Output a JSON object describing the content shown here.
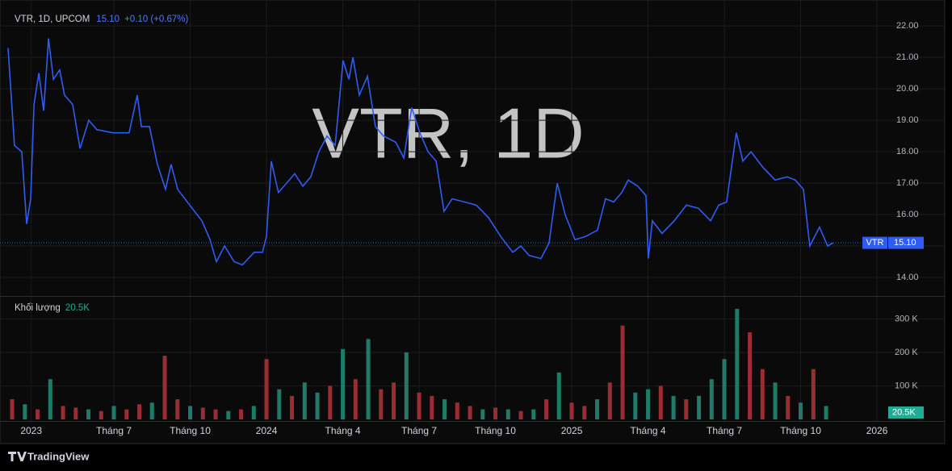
{
  "chart_data": [
    {
      "type": "line",
      "title": "VTR, 1D",
      "subtitle": "VTR, 1D, UPCOM",
      "change": "+0.10 (+0.67%)",
      "x": [
        1.84,
        2.09,
        2.38,
        2.57,
        2.73,
        2.86,
        3.05,
        3.24,
        3.43,
        3.62,
        3.87,
        4.06,
        4.38,
        4.67,
        5.01,
        5.33,
        5.97,
        6.6,
        6.92,
        7.08,
        7.4,
        7.71,
        8.03,
        8.25,
        8.51,
        8.98,
        9.46,
        9.78,
        10.03,
        10.35,
        10.73,
        11.05,
        11.52,
        11.84,
        12.0,
        12.19,
        12.47,
        12.79,
        13.11,
        13.43,
        13.74,
        14.06,
        14.38,
        14.7,
        15.01,
        15.24,
        15.4,
        15.65,
        15.97,
        16.28,
        16.6,
        17.08,
        17.4,
        17.71,
        18.03,
        18.35,
        18.67,
        18.98,
        19.3,
        19.78,
        20.25,
        20.73,
        21.21,
        21.68,
        22.0,
        22.32,
        22.79,
        23.11,
        23.43,
        23.74,
        24.13,
        24.54,
        25.01,
        25.33,
        25.65,
        25.97,
        26.22,
        26.6,
        26.92,
        27.01,
        27.17,
        27.55,
        28.03,
        28.51,
        28.98,
        29.46,
        29.78,
        30.09,
        30.47,
        30.73,
        31.05,
        31.52,
        32.0,
        32.47,
        32.79,
        33.11,
        33.36,
        33.74,
        34.06,
        34.28
      ],
      "series": [
        {
          "name": "VTR",
          "color": "#2f5cf5",
          "values": [
            21.3,
            18.2,
            18.0,
            15.7,
            16.5,
            19.5,
            20.5,
            19.3,
            21.6,
            20.3,
            20.6,
            19.8,
            19.5,
            18.1,
            19.0,
            18.7,
            18.6,
            18.6,
            19.8,
            18.8,
            18.8,
            17.6,
            16.8,
            17.6,
            16.8,
            16.3,
            15.8,
            15.2,
            14.5,
            15.0,
            14.5,
            14.4,
            14.8,
            14.8,
            15.3,
            17.7,
            16.7,
            17.0,
            17.3,
            16.9,
            17.2,
            18.0,
            18.5,
            18.2,
            20.9,
            20.3,
            21.0,
            19.8,
            20.4,
            18.8,
            18.5,
            18.3,
            17.8,
            19.4,
            18.6,
            18.0,
            17.7,
            16.1,
            16.5,
            16.4,
            16.3,
            15.9,
            15.3,
            14.8,
            15.0,
            14.7,
            14.6,
            15.1,
            17.0,
            16.0,
            15.2,
            15.3,
            15.5,
            16.5,
            16.4,
            16.7,
            17.1,
            16.9,
            16.6,
            14.6,
            15.8,
            15.4,
            15.8,
            16.3,
            16.2,
            15.8,
            16.3,
            16.4,
            18.6,
            17.7,
            18.0,
            17.5,
            17.1,
            17.2,
            17.1,
            16.8,
            15.0,
            15.6,
            15.0,
            15.1
          ]
        }
      ],
      "last_price": {
        "value": 15.1,
        "label": "15.10"
      },
      "xlim": [
        1.84,
        36.3
      ],
      "xticks": [
        {
          "value": 2.75,
          "label": "2023"
        },
        {
          "value": 6,
          "label": "Tháng 7"
        },
        {
          "value": 9,
          "label": "Tháng 10"
        },
        {
          "value": 12,
          "label": "2024"
        },
        {
          "value": 15,
          "label": "Tháng 4"
        },
        {
          "value": 18,
          "label": "Tháng 7"
        },
        {
          "value": 21,
          "label": "Tháng 10"
        },
        {
          "value": 24,
          "label": "2025"
        },
        {
          "value": 27,
          "label": "Tháng 4"
        },
        {
          "value": 30,
          "label": "Tháng 7"
        },
        {
          "value": 33,
          "label": "Tháng 10"
        },
        {
          "value": 36,
          "label": "2026"
        }
      ],
      "ylim": [
        13.41,
        22.26
      ],
      "yticks": [
        {
          "value": 14,
          "label": "14.00"
        },
        {
          "value": 15,
          "label": "15.00"
        },
        {
          "value": 16,
          "label": "16.00"
        },
        {
          "value": 17,
          "label": "17.00"
        },
        {
          "value": 18,
          "label": "18.00"
        },
        {
          "value": 19,
          "label": "19.00"
        },
        {
          "value": 20,
          "label": "20.00"
        },
        {
          "value": 21,
          "label": "21.00"
        },
        {
          "value": 22,
          "label": "22.00"
        }
      ],
      "grid": true
    },
    {
      "type": "bar",
      "title": "Khối lượng",
      "x": [
        2.0,
        2.5,
        3.0,
        3.5,
        4.0,
        4.5,
        5.0,
        5.5,
        6.0,
        6.5,
        7.0,
        7.5,
        8.0,
        8.5,
        9.0,
        9.5,
        10.0,
        10.5,
        11.0,
        11.5,
        12.0,
        12.5,
        13.0,
        13.5,
        14.0,
        14.5,
        15.0,
        15.5,
        16.0,
        16.5,
        17.0,
        17.5,
        18.0,
        18.5,
        19.0,
        19.5,
        20.0,
        20.5,
        21.0,
        21.5,
        22.0,
        22.5,
        23.0,
        23.5,
        24.0,
        24.5,
        25.0,
        25.5,
        26.0,
        26.5,
        27.0,
        27.5,
        28.0,
        28.5,
        29.0,
        29.5,
        30.0,
        30.5,
        31.0,
        31.5,
        32.0,
        32.5,
        33.0,
        33.5,
        34.0
      ],
      "values": [
        60000,
        45000,
        30000,
        120000,
        40000,
        35000,
        30000,
        25000,
        40000,
        30000,
        45000,
        50000,
        190000,
        60000,
        40000,
        35000,
        30000,
        25000,
        30000,
        40000,
        180000,
        90000,
        70000,
        110000,
        80000,
        100000,
        210000,
        120000,
        240000,
        90000,
        110000,
        200000,
        80000,
        70000,
        60000,
        50000,
        40000,
        30000,
        35000,
        30000,
        25000,
        30000,
        60000,
        140000,
        50000,
        40000,
        60000,
        110000,
        280000,
        80000,
        90000,
        100000,
        70000,
        60000,
        70000,
        120000,
        180000,
        330000,
        260000,
        150000,
        110000,
        70000,
        50000,
        150000,
        40000
      ],
      "colors": [
        "#9b2c33",
        "#1f7a68",
        "#9b2c33",
        "#1f7a68",
        "#9b2c33",
        "#9b2c33",
        "#1f7a68",
        "#9b2c33",
        "#1f7a68",
        "#9b2c33",
        "#9b2c33",
        "#1f7a68",
        "#9b2c33",
        "#9b2c33",
        "#1f7a68",
        "#9b2c33",
        "#9b2c33",
        "#1f7a68",
        "#9b2c33",
        "#1f7a68",
        "#9b2c33",
        "#1f7a68",
        "#9b2c33",
        "#1f7a68",
        "#1f7a68",
        "#9b2c33",
        "#1f7a68",
        "#9b2c33",
        "#1f7a68",
        "#9b2c33",
        "#9b2c33",
        "#1f7a68",
        "#9b2c33",
        "#9b2c33",
        "#1f7a68",
        "#9b2c33",
        "#9b2c33",
        "#1f7a68",
        "#9b2c33",
        "#1f7a68",
        "#9b2c33",
        "#1f7a68",
        "#9b2c33",
        "#1f7a68",
        "#9b2c33",
        "#9b2c33",
        "#1f7a68",
        "#9b2c33",
        "#9b2c33",
        "#1f7a68",
        "#1f7a68",
        "#9b2c33",
        "#1f7a68",
        "#9b2c33",
        "#1f7a68",
        "#1f7a68",
        "#1f7a68",
        "#1f7a68",
        "#9b2c33",
        "#9b2c33",
        "#1f7a68",
        "#9b2c33",
        "#1f7a68",
        "#9b2c33",
        "#1f7a68"
      ],
      "last_value": {
        "value": 20500,
        "label": "20.5K"
      },
      "ylim": [
        0,
        366000
      ],
      "yticks": [
        {
          "value": 100000,
          "label": "100 K"
        },
        {
          "value": 200000,
          "label": "200 K"
        },
        {
          "value": 300000,
          "label": "300 K"
        }
      ]
    }
  ],
  "brand": "TradingView"
}
